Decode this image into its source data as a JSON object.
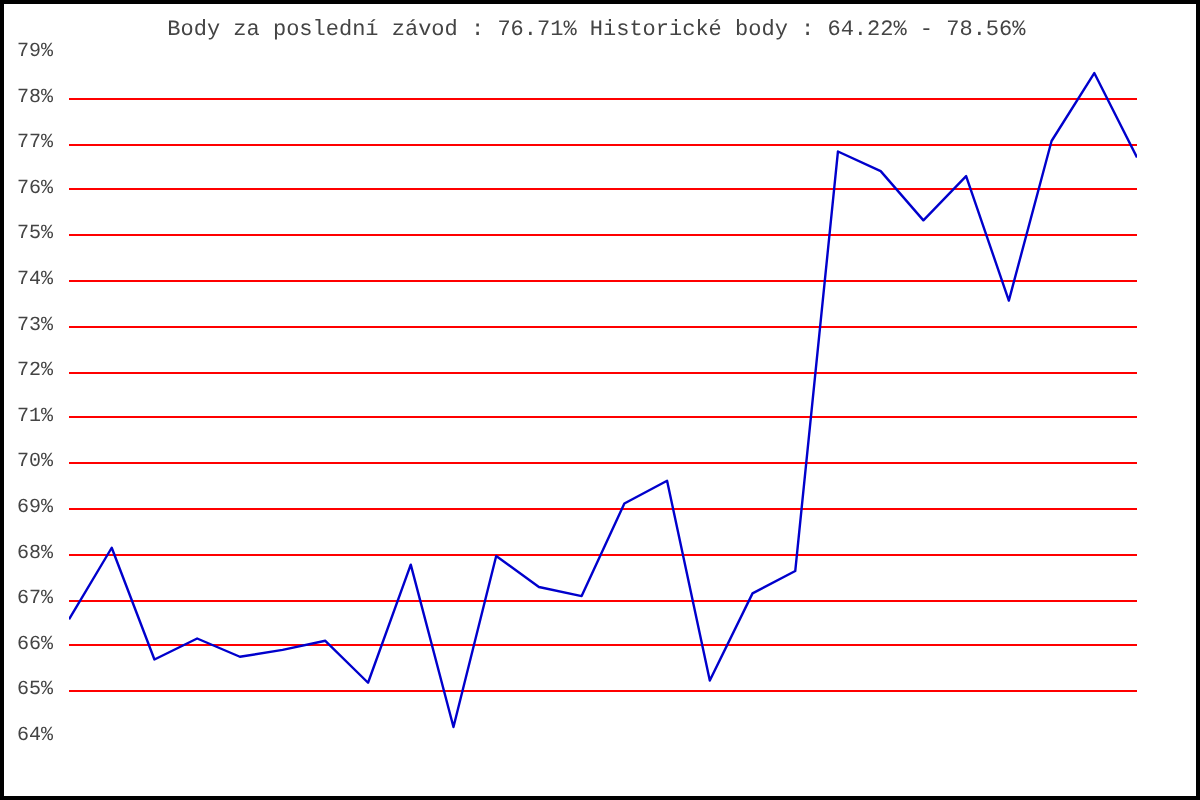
{
  "chart_data": {
    "type": "line",
    "title": "Body za poslední závod : 76.71%  Historické body : 64.22% - 78.56%",
    "categories": [
      null,
      null,
      null,
      null,
      null,
      null,
      null,
      null,
      null,
      null,
      null,
      null,
      null,
      null,
      null,
      null,
      null,
      null,
      null,
      null,
      null,
      null,
      null,
      null,
      null,
      null
    ],
    "series": [
      {
        "color": "#0000cc",
        "values": [
          66.58,
          68.15,
          65.7,
          66.16,
          65.76,
          65.91,
          66.11,
          65.19,
          67.78,
          64.22,
          67.97,
          67.29,
          67.09,
          69.12,
          69.62,
          65.24,
          67.15,
          67.64,
          76.84,
          76.41,
          75.33,
          76.3,
          73.57,
          77.07,
          78.56,
          76.71
        ]
      }
    ],
    "ylim": [
      64,
      79
    ],
    "yticks": [
      {
        "value": 64,
        "label": "64%"
      },
      {
        "value": 65,
        "label": "65%"
      },
      {
        "value": 66,
        "label": "66%"
      },
      {
        "value": 67,
        "label": "67%"
      },
      {
        "value": 68,
        "label": "68%"
      },
      {
        "value": 69,
        "label": "69%"
      },
      {
        "value": 70,
        "label": "70%"
      },
      {
        "value": 71,
        "label": "71%"
      },
      {
        "value": 72,
        "label": "72%"
      },
      {
        "value": 73,
        "label": "73%"
      },
      {
        "value": 74,
        "label": "74%"
      },
      {
        "value": 75,
        "label": "75%"
      },
      {
        "value": 76,
        "label": "76%"
      },
      {
        "value": 77,
        "label": "77%"
      },
      {
        "value": 78,
        "label": "78%"
      },
      {
        "value": 79,
        "label": "79%"
      }
    ],
    "grid": "y",
    "tick_labels": "y",
    "marker": "none",
    "line_style": "solid"
  }
}
